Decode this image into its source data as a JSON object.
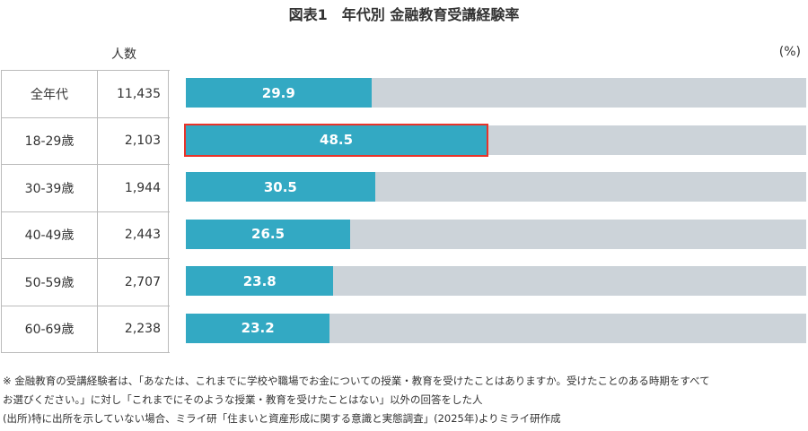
{
  "chart_data": {
    "type": "bar",
    "orientation": "horizontal",
    "title": "図表1　年代別 金融教育受講経験率",
    "unit": "(%)",
    "count_header": "人数",
    "categories": [
      "全年代",
      "18-29歳",
      "30-39歳",
      "40-49歳",
      "50-59歳",
      "60-69歳"
    ],
    "counts": [
      "11,435",
      "2,103",
      "1,944",
      "2,443",
      "2,707",
      "2,238"
    ],
    "values": [
      29.9,
      48.5,
      30.5,
      26.5,
      23.8,
      23.2
    ],
    "xlim": [
      0,
      100
    ],
    "highlighted": "18-29歳",
    "colors": {
      "bar": "#33a9c3",
      "track": "#ccd3d9",
      "highlight": "#e8342a"
    }
  },
  "notes": [
    "※ 金融教育の受講経験者は、「あなたは、これまでに学校や職場でお金についての授業・教育を受けたことはありますか。受けたことのある時期をすべて",
    "お選びください。」に対し「これまでにそのような授業・教育を受けたことはない」以外の回答をした人",
    "(出所)特に出所を示していない場合、ミライ研「住まいと資産形成に関する意識と実態調査」(2025年)よりミライ研作成"
  ]
}
